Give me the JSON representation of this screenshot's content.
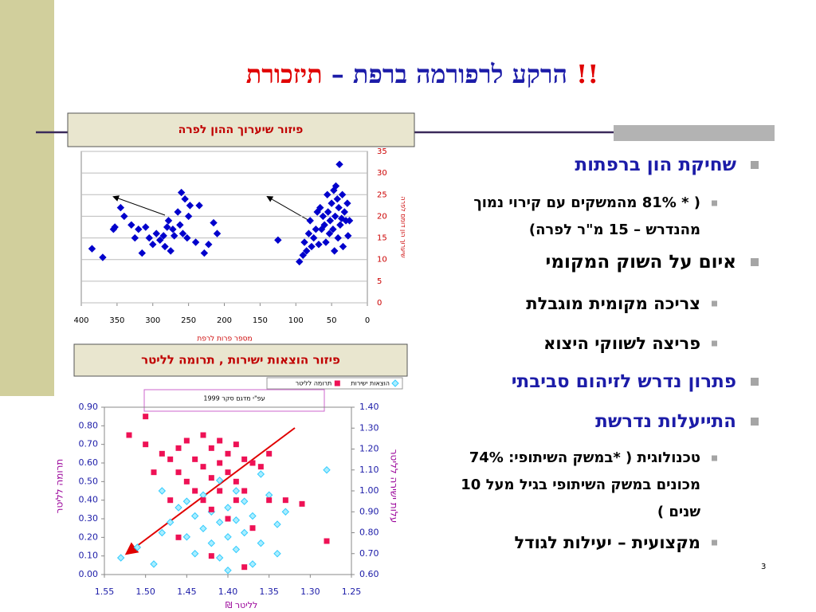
{
  "title": {
    "main": "הרקע לרפורמה ברפת – ",
    "highlight": "תיזכורת !!"
  },
  "page_number": "3",
  "bullets": [
    {
      "level": 1,
      "color": "#1c1ca8",
      "text": "שחיקת הון ברפתות"
    },
    {
      "level": 2,
      "color": "#000000",
      "text": "( * 81% מהמשקים עם קירוי נמוך מהנדרש – 15 מ\"ר לפרה)"
    },
    {
      "level": 1,
      "color": "#000000",
      "text": "איום על השוק המקומי"
    },
    {
      "level": 2,
      "color": "#000000",
      "text": "צריכה  מקומית מוגבלת"
    },
    {
      "level": 2,
      "color": "#000000",
      "text": "פריצה  לשווקי היצוא"
    },
    {
      "level": 1,
      "color": "#1c1ca8",
      "text": "פתרון נדרש לזיהום סביבתי"
    },
    {
      "level": 1,
      "color": "#1c1ca8",
      "text": "התייעלות  נדרשת"
    },
    {
      "level": 2,
      "color": "#000000",
      "text": "טכנולוגית ( *במשק השיתופי: 74% מכונים במשק השיתופי בגיל מעל 10 שנים )"
    },
    {
      "level": 2,
      "color": "#000000",
      "text": "מקצועית – יעילות לגודל"
    }
  ],
  "chart_data": [
    {
      "type": "scatter",
      "title": "פיזור שיערוך ההון לפרה",
      "xlabel": "מספר פרות לרפת",
      "ylabel": "שיערוך הון דומם לפרה",
      "xlim": [
        400,
        0
      ],
      "xticks": [
        400,
        350,
        300,
        250,
        200,
        150,
        100,
        50,
        0
      ],
      "ylim": [
        0,
        35
      ],
      "yticks": [
        0,
        5,
        10,
        15,
        20,
        25,
        30,
        35
      ],
      "grid": true,
      "series": [
        {
          "color": "#0000cc",
          "marker": "diamond",
          "x": [
            385,
            370,
            355,
            353,
            345,
            340,
            330,
            325,
            320,
            315,
            310,
            305,
            300,
            295,
            290,
            285,
            283,
            280,
            278,
            275,
            272,
            270,
            265,
            262,
            260,
            258,
            255,
            252,
            250,
            248,
            240,
            235,
            228,
            222,
            215,
            210,
            125,
            95,
            90,
            88,
            85,
            82,
            80,
            78,
            75,
            72,
            70,
            68,
            66,
            64,
            62,
            60,
            58,
            56,
            55,
            53,
            52,
            50,
            48,
            47,
            46,
            45,
            44,
            42,
            41,
            40,
            39,
            38,
            36,
            35,
            34,
            32,
            30,
            28,
            27,
            25
          ],
          "values": [
            12.5,
            10.5,
            17,
            17.5,
            22,
            20,
            18,
            15,
            17,
            11.5,
            17.5,
            15,
            13.5,
            16,
            14.5,
            15.5,
            13,
            17.5,
            19,
            12,
            17,
            15.5,
            21,
            18,
            25.5,
            16,
            24,
            15,
            20,
            22.5,
            14,
            22.5,
            11.5,
            13.5,
            18.5,
            16,
            14.5,
            9.5,
            11,
            14,
            12,
            16,
            19,
            13,
            15,
            17,
            21,
            13.5,
            22,
            17,
            20,
            18,
            14,
            25,
            21,
            16,
            19,
            23,
            17,
            26,
            12,
            20,
            27,
            24,
            15,
            22,
            32,
            18,
            19.5,
            25,
            13,
            21,
            19,
            23,
            15.5,
            19
          ]
        }
      ]
    },
    {
      "type": "scatter",
      "title": "פיזור הוצאות ישירות , תרומה לליטר",
      "xlabel": "₪ לליטר",
      "ylabel": "תרומה לליטר",
      "y2label": "עלות ישירה לליטר",
      "annotation": "עפ\"י מדגם סקר 1999",
      "legend": "top-right",
      "xlim": [
        1.55,
        1.25
      ],
      "xticks": [
        {
          "value": 1.55,
          "label": "1.55"
        },
        {
          "value": 1.5,
          "label": "1.50"
        },
        {
          "value": 1.45,
          "label": "1.45"
        },
        {
          "value": 1.4,
          "label": "1.40"
        },
        {
          "value": 1.35,
          "label": "1.35"
        },
        {
          "value": 1.3,
          "label": "1.30"
        },
        {
          "value": 1.25,
          "label": "1.25"
        }
      ],
      "ylim": [
        0,
        0.9
      ],
      "yticks": [
        {
          "value": 0,
          "label": "0.00"
        },
        {
          "value": 0.1,
          "label": "0.10"
        },
        {
          "value": 0.2,
          "label": "0.20"
        },
        {
          "value": 0.3,
          "label": "0.30"
        },
        {
          "value": 0.4,
          "label": "0.40"
        },
        {
          "value": 0.5,
          "label": "0.50"
        },
        {
          "value": 0.6,
          "label": "0.60"
        },
        {
          "value": 0.7,
          "label": "0.70"
        },
        {
          "value": 0.8,
          "label": "0.80"
        },
        {
          "value": 0.9,
          "label": "0.90"
        }
      ],
      "y2lim": [
        0.6,
        1.4
      ],
      "y2ticks": [
        {
          "value": 0.6,
          "label": "0.60"
        },
        {
          "value": 0.7,
          "label": "0.70"
        },
        {
          "value": 0.8,
          "label": "0.80"
        },
        {
          "value": 0.9,
          "label": "0.90"
        },
        {
          "value": 1,
          "label": "1.00"
        },
        {
          "value": 1.1,
          "label": "1.10"
        },
        {
          "value": 1.2,
          "label": "1.20"
        },
        {
          "value": 1.3,
          "label": "1.30"
        },
        {
          "value": 1.4,
          "label": "1.40"
        }
      ],
      "grid": false,
      "series": [
        {
          "name": "הוצאות ישירות",
          "color": "#33ccff",
          "marker": "diamond",
          "axis": "y2",
          "x": [
            1.53,
            1.51,
            1.49,
            1.48,
            1.47,
            1.46,
            1.45,
            1.45,
            1.44,
            1.44,
            1.43,
            1.43,
            1.42,
            1.42,
            1.41,
            1.41,
            1.41,
            1.4,
            1.4,
            1.39,
            1.39,
            1.39,
            1.38,
            1.38,
            1.37,
            1.37,
            1.36,
            1.36,
            1.35,
            1.34,
            1.34,
            1.33,
            1.28,
            1.4,
            1.48
          ],
          "values": [
            0.68,
            0.73,
            0.65,
            0.8,
            0.85,
            0.92,
            0.78,
            0.95,
            0.7,
            0.88,
            0.98,
            0.82,
            0.75,
            0.9,
            0.68,
            0.85,
            1.05,
            0.78,
            0.92,
            0.72,
            0.86,
            1,
            0.8,
            0.95,
            0.65,
            0.88,
            1.08,
            0.75,
            0.98,
            0.84,
            0.7,
            0.9,
            1.1,
            0.62,
            1
          ]
        },
        {
          "name": "תרומה לליטר",
          "color": "#ee1155",
          "marker": "square",
          "x": [
            1.52,
            1.5,
            1.5,
            1.49,
            1.48,
            1.47,
            1.47,
            1.46,
            1.46,
            1.45,
            1.45,
            1.44,
            1.44,
            1.43,
            1.43,
            1.43,
            1.42,
            1.42,
            1.42,
            1.41,
            1.41,
            1.41,
            1.4,
            1.4,
            1.4,
            1.39,
            1.39,
            1.39,
            1.38,
            1.38,
            1.37,
            1.37,
            1.36,
            1.35,
            1.35,
            1.33,
            1.31,
            1.28,
            1.38,
            1.42,
            1.46
          ],
          "values": [
            0.75,
            0.85,
            0.7,
            0.55,
            0.65,
            0.62,
            0.4,
            0.68,
            0.55,
            0.72,
            0.5,
            0.62,
            0.45,
            0.75,
            0.58,
            0.4,
            0.68,
            0.52,
            0.35,
            0.72,
            0.6,
            0.45,
            0.65,
            0.55,
            0.3,
            0.7,
            0.5,
            0.4,
            0.62,
            0.45,
            0.6,
            0.25,
            0.58,
            0.65,
            0.4,
            0.4,
            0.38,
            0.18,
            0.04,
            0.1,
            0.2
          ]
        }
      ]
    }
  ]
}
